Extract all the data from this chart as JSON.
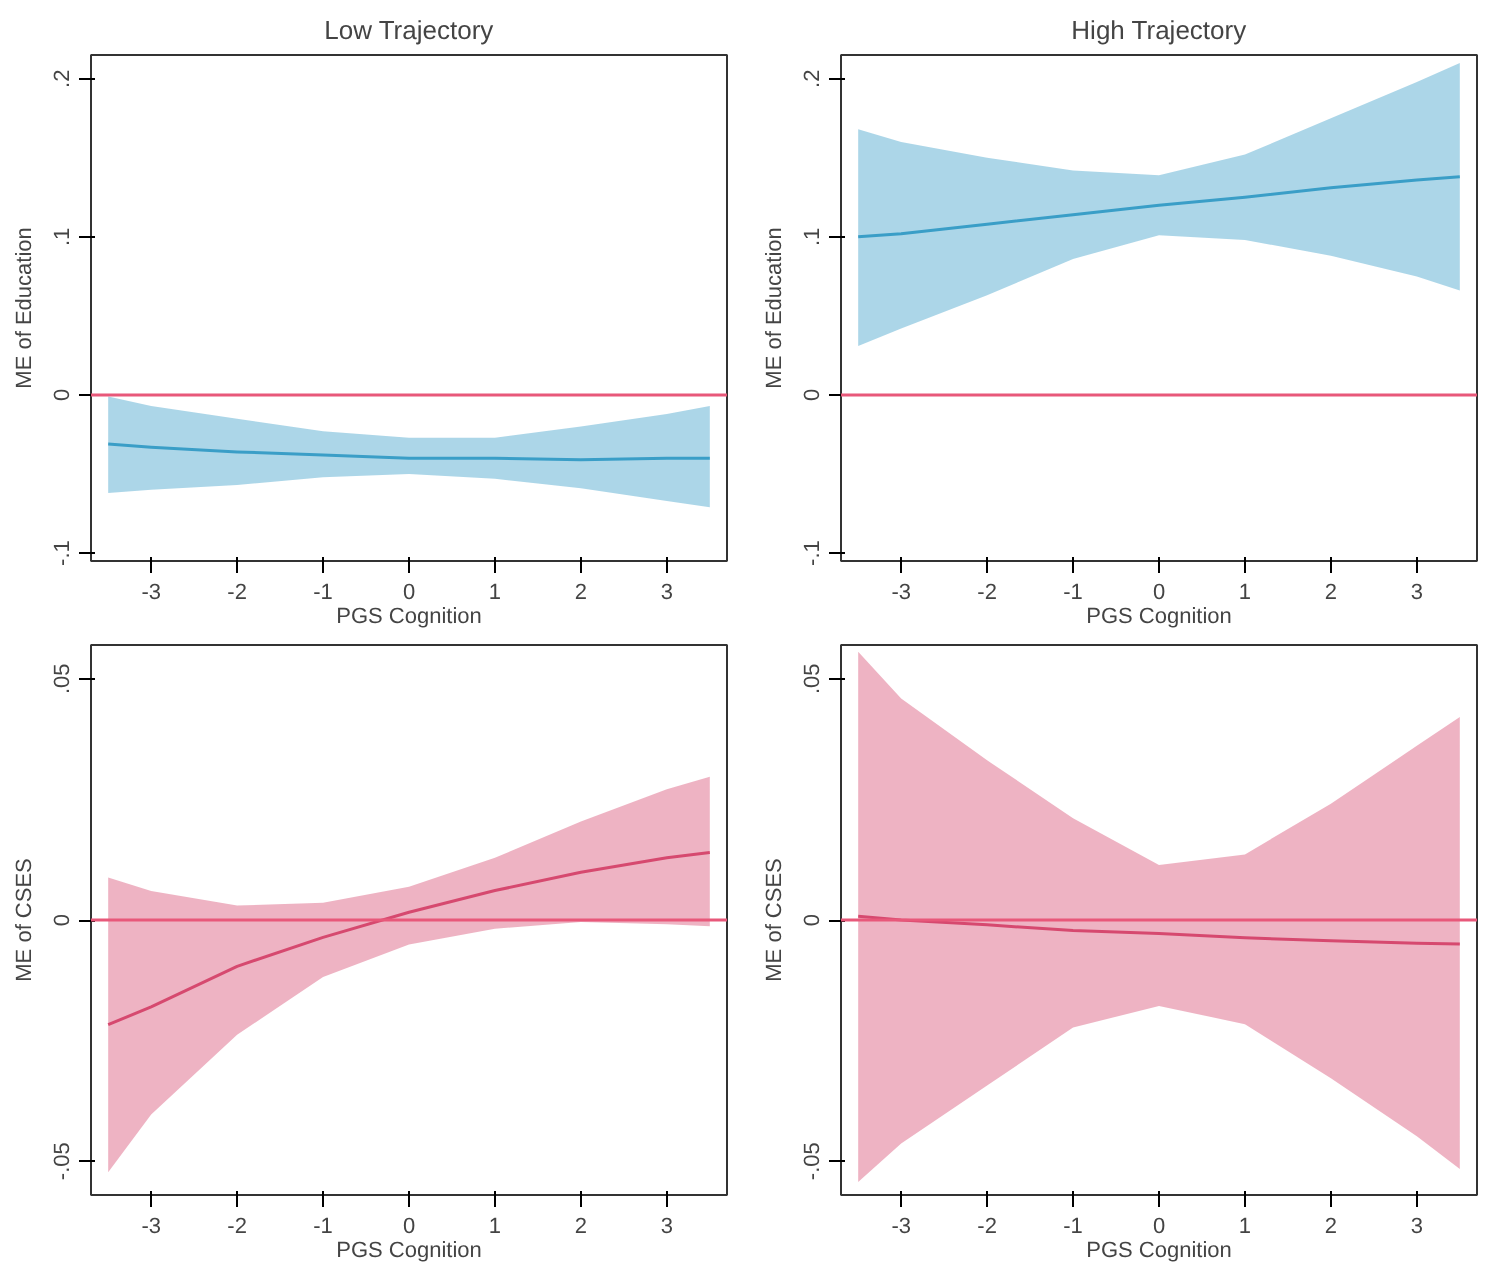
{
  "chart_data": [
    {
      "type": "line",
      "title": "Low Trajectory",
      "xlabel": "PGS Cognition",
      "ylabel": "ME of Education",
      "xlim": [
        -3.7,
        3.7
      ],
      "xticks": [
        -3,
        -2,
        -1,
        0,
        1,
        2,
        3
      ],
      "ylim": [
        -0.105,
        0.215
      ],
      "yticks": [
        {
          "value": -0.1,
          "label": "-.1"
        },
        0,
        {
          "value": 0.1,
          "label": ".1"
        },
        {
          "value": 0.2,
          "label": ".2"
        }
      ],
      "series": [
        {
          "color": "#3a9ec7",
          "x": [
            -3.5,
            -3,
            -2,
            -1,
            0,
            1,
            2,
            3,
            3.5
          ],
          "values": [
            -0.031,
            -0.033,
            -0.036,
            -0.038,
            -0.04,
            -0.04,
            -0.041,
            -0.04,
            -0.04
          ],
          "lower": [
            -0.062,
            -0.06,
            -0.057,
            -0.052,
            -0.05,
            -0.053,
            -0.059,
            -0.067,
            -0.071
          ],
          "upper": [
            -0.001,
            -0.007,
            -0.015,
            -0.023,
            -0.027,
            -0.027,
            -0.02,
            -0.012,
            -0.007
          ]
        }
      ],
      "ref_lines": [
        {
          "axis": "y",
          "value": 0,
          "color": "#e8587a"
        }
      ]
    },
    {
      "type": "line",
      "title": "High Trajectory",
      "xlabel": "PGS Cognition",
      "ylabel": "ME of Education",
      "xlim": [
        -3.7,
        3.7
      ],
      "xticks": [
        -3,
        -2,
        -1,
        0,
        1,
        2,
        3
      ],
      "ylim": [
        -0.105,
        0.215
      ],
      "yticks": [
        {
          "value": -0.1,
          "label": "-.1"
        },
        0,
        {
          "value": 0.1,
          "label": ".1"
        },
        {
          "value": 0.2,
          "label": ".2"
        }
      ],
      "series": [
        {
          "color": "#3a9ec7",
          "x": [
            -3.5,
            -3,
            -2,
            -1,
            0,
            1,
            2,
            3,
            3.5
          ],
          "values": [
            0.1,
            0.102,
            0.108,
            0.114,
            0.12,
            0.125,
            0.131,
            0.136,
            0.138
          ],
          "lower": [
            0.031,
            0.042,
            0.063,
            0.086,
            0.101,
            0.098,
            0.088,
            0.075,
            0.066
          ],
          "upper": [
            0.168,
            0.16,
            0.15,
            0.142,
            0.139,
            0.152,
            0.175,
            0.198,
            0.21
          ]
        }
      ],
      "ref_lines": [
        {
          "axis": "y",
          "value": 0,
          "color": "#e8587a"
        }
      ]
    },
    {
      "type": "line",
      "xlabel": "PGS Cognition",
      "ylabel": "ME of CSES",
      "xlim": [
        -3.7,
        3.7
      ],
      "xticks": [
        -3,
        -2,
        -1,
        0,
        1,
        2,
        3
      ],
      "ylim": [
        -0.057,
        0.057
      ],
      "yticks": [
        {
          "value": -0.05,
          "label": "-.05"
        },
        0,
        {
          "value": 0.05,
          "label": ".05"
        }
      ],
      "series": [
        {
          "color": "#d6496f",
          "x": [
            -3.5,
            -3,
            -2,
            -1,
            0,
            1,
            2,
            3,
            3.5
          ],
          "values": [
            -0.0217,
            -0.018,
            -0.0096,
            -0.0036,
            0.0016,
            0.0061,
            0.0099,
            0.0129,
            0.014
          ],
          "lower": [
            -0.0523,
            -0.0403,
            -0.0238,
            -0.0118,
            -0.0051,
            -0.0018,
            -0.0004,
            -0.0009,
            -0.0013
          ],
          "upper": [
            0.0088,
            0.006,
            0.003,
            0.0036,
            0.0069,
            0.0129,
            0.0204,
            0.0271,
            0.0297
          ]
        }
      ],
      "ref_lines": [
        {
          "axis": "y",
          "value": 0,
          "color": "#e8587a"
        }
      ]
    },
    {
      "type": "line",
      "xlabel": "PGS Cognition",
      "ylabel": "ME of CSES",
      "xlim": [
        -3.7,
        3.7
      ],
      "xticks": [
        -3,
        -2,
        -1,
        0,
        1,
        2,
        3
      ],
      "ylim": [
        -0.057,
        0.057
      ],
      "yticks": [
        {
          "value": -0.05,
          "label": "-.05"
        },
        0,
        {
          "value": 0.05,
          "label": ".05"
        }
      ],
      "series": [
        {
          "color": "#d6496f",
          "x": [
            -3.5,
            -3,
            -2,
            -1,
            0,
            1,
            2,
            3,
            3.5
          ],
          "values": [
            0.0008,
            0,
            -0.001,
            -0.0022,
            -0.0028,
            -0.0037,
            -0.0043,
            -0.0048,
            -0.005
          ],
          "lower": [
            -0.0543,
            -0.0463,
            -0.0343,
            -0.0223,
            -0.0178,
            -0.0216,
            -0.0328,
            -0.0448,
            -0.0516
          ],
          "upper": [
            0.0556,
            0.0459,
            0.0331,
            0.0211,
            0.0114,
            0.0136,
            0.0241,
            0.0361,
            0.0421
          ]
        }
      ],
      "ref_lines": [
        {
          "axis": "y",
          "value": 0,
          "color": "#e8587a"
        }
      ]
    }
  ]
}
